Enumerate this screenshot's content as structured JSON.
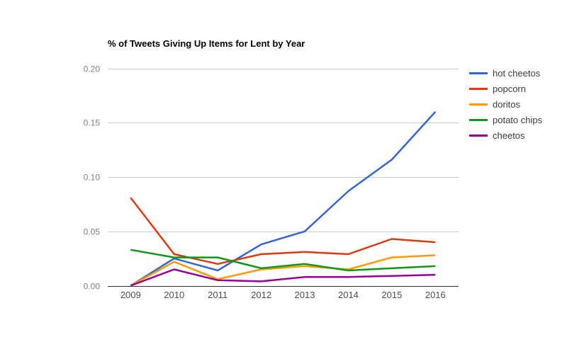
{
  "chart_data": {
    "type": "line",
    "title": "% of Tweets Giving Up Items for Lent by Year",
    "xlabel": "",
    "ylabel": "",
    "x": [
      2009,
      2010,
      2011,
      2012,
      2013,
      2014,
      2015,
      2016
    ],
    "series": [
      {
        "name": "hot cheetos",
        "color": "#3366cc",
        "values": [
          0.0,
          0.025,
          0.014,
          0.038,
          0.05,
          0.087,
          0.116,
          0.16
        ]
      },
      {
        "name": "popcorn",
        "color": "#dc3912",
        "values": [
          0.081,
          0.029,
          0.02,
          0.029,
          0.031,
          0.029,
          0.043,
          0.04
        ]
      },
      {
        "name": "doritos",
        "color": "#ff9900",
        "values": [
          0.0,
          0.022,
          0.006,
          0.015,
          0.018,
          0.015,
          0.026,
          0.028
        ]
      },
      {
        "name": "potato chips",
        "color": "#109618",
        "values": [
          0.033,
          0.026,
          0.026,
          0.016,
          0.02,
          0.014,
          0.016,
          0.018
        ]
      },
      {
        "name": "cheetos",
        "color": "#990099",
        "values": [
          0.0,
          0.015,
          0.005,
          0.004,
          0.008,
          0.008,
          0.009,
          0.01
        ]
      }
    ],
    "ylim": [
      0,
      0.2
    ],
    "yticks": [
      0.0,
      0.05,
      0.1,
      0.15,
      0.2
    ],
    "ytick_labels": [
      "0.00",
      "0.05",
      "0.10",
      "0.15",
      "0.20"
    ],
    "grid": true,
    "legend_position": "right",
    "colors": {
      "gridline": "#cccccc",
      "axis_line": "#333333",
      "ytick_text": "#808080",
      "xtick_text": "#4d4d4d",
      "legend_text": "#3c3c3c",
      "background": "#ffffff"
    }
  }
}
